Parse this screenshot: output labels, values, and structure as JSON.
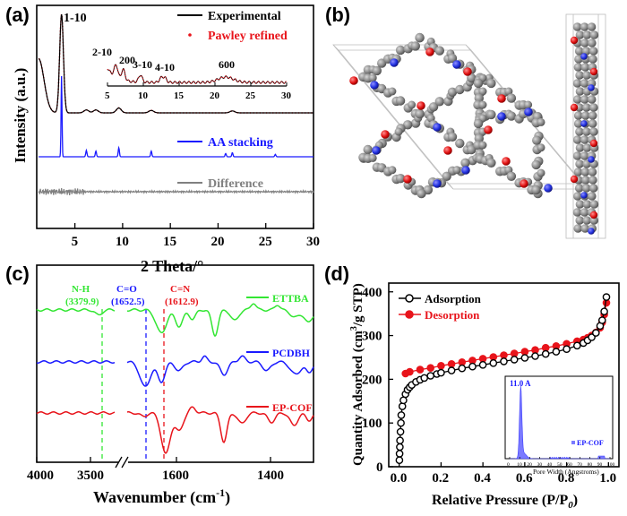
{
  "colors": {
    "black": "#000000",
    "red": "#e8141b",
    "blue": "#1a1aff",
    "gray": "#808080",
    "green": "#33e633",
    "atom_gray": "#8a8a8a",
    "atom_red": "#e01010",
    "atom_blue": "#2030e0",
    "inset_fill": "#7a7aff"
  },
  "panels": {
    "a": "(a)",
    "b": "(b)",
    "c": "(c)",
    "d": "(d)"
  },
  "chart_data": [
    {
      "id": "a",
      "type": "line",
      "xlabel": "2 Theta/°",
      "ylabel": "Intensity (a.u.)",
      "xlim": [
        1,
        30
      ],
      "xticks": [
        5,
        10,
        15,
        20,
        25,
        30
      ],
      "series": [
        {
          "name": "Experimental",
          "color": "#000000",
          "style": "line"
        },
        {
          "name": "Pawley refined",
          "color": "#e8141b",
          "style": "dots"
        },
        {
          "name": "AA stacking",
          "color": "#1a1aff",
          "style": "line"
        },
        {
          "name": "Difference",
          "color": "#808080",
          "style": "line"
        }
      ],
      "peak_labels": [
        "1-10"
      ],
      "peaks_main": [
        {
          "x": 3.6,
          "h": 1.0
        },
        {
          "x": 6.2,
          "h": 0.03
        },
        {
          "x": 7.2,
          "h": 0.03
        },
        {
          "x": 9.6,
          "h": 0.05
        },
        {
          "x": 13.0,
          "h": 0.025
        },
        {
          "x": 21.5,
          "h": 0.02
        }
      ],
      "peaks_aa": [
        {
          "x": 3.6,
          "h": 1.0
        },
        {
          "x": 6.2,
          "h": 0.08
        },
        {
          "x": 7.2,
          "h": 0.07
        },
        {
          "x": 9.6,
          "h": 0.11
        },
        {
          "x": 13.0,
          "h": 0.07
        },
        {
          "x": 20.8,
          "h": 0.04
        },
        {
          "x": 21.5,
          "h": 0.05
        },
        {
          "x": 26.0,
          "h": 0.03
        }
      ],
      "inset": {
        "xlim": [
          5,
          30
        ],
        "xticks": [
          5,
          10,
          15,
          20,
          25,
          30
        ],
        "peak_labels": [
          {
            "text": "2-10",
            "x": 6.0
          },
          {
            "text": "200",
            "x": 7.1
          },
          {
            "text": "3-10",
            "x": 9.6
          },
          {
            "text": "4-10",
            "x": 13.0
          },
          {
            "text": "600",
            "x": 21.5
          }
        ]
      }
    },
    {
      "id": "c",
      "type": "line",
      "xlabel": "Wavenumber (cm",
      "xlabel_sup": "-1",
      "xlabel_end": ")",
      "xticks": [
        "4000",
        "3500",
        "1600",
        "1400"
      ],
      "series": [
        {
          "name": "ETTBA",
          "color": "#33e633"
        },
        {
          "name": "PCDBH",
          "color": "#1a1aff"
        },
        {
          "name": "EP-COF",
          "color": "#e8141b"
        }
      ],
      "markers": [
        {
          "label": "N-H",
          "value": "(3379.9)",
          "color": "#33e633"
        },
        {
          "label": "C=O",
          "value": "(1652.5)",
          "color": "#1a1aff"
        },
        {
          "label": "C=N",
          "value": "(1612.9)",
          "color": "#e8141b"
        }
      ]
    },
    {
      "id": "d",
      "type": "line",
      "xlabel": "Relative Pressure (P/P",
      "xlabel_sub": "0",
      "xlabel_end": ")",
      "ylabel": "Quantity Adsorbed (cm",
      "ylabel_sup": "3",
      "ylabel_end": "/g STP)",
      "xlim": [
        -0.05,
        1.05
      ],
      "ylim": [
        0,
        420
      ],
      "xticks": [
        "0.0",
        "0.2",
        "0.4",
        "0.6",
        "0.8",
        "1.0"
      ],
      "yticks": [
        "0",
        "100",
        "200",
        "300",
        "400"
      ],
      "series": [
        {
          "name": "Adsorption",
          "color": "#000000",
          "x": [
            0.001,
            0.002,
            0.003,
            0.004,
            0.006,
            0.008,
            0.01,
            0.015,
            0.02,
            0.03,
            0.04,
            0.05,
            0.06,
            0.08,
            0.1,
            0.12,
            0.15,
            0.18,
            0.2,
            0.25,
            0.3,
            0.35,
            0.4,
            0.45,
            0.5,
            0.55,
            0.6,
            0.65,
            0.7,
            0.75,
            0.8,
            0.85,
            0.88,
            0.9,
            0.92,
            0.94,
            0.96,
            0.97,
            0.98,
            0.99
          ],
          "y": [
            15,
            30,
            45,
            60,
            80,
            100,
            118,
            138,
            152,
            166,
            176,
            182,
            187,
            194,
            199,
            203,
            208,
            212,
            215,
            220,
            225,
            229,
            233,
            237,
            241,
            245,
            249,
            253,
            258,
            263,
            269,
            277,
            283,
            289,
            296,
            306,
            322,
            335,
            355,
            388
          ]
        },
        {
          "name": "Desorption",
          "color": "#e8141b",
          "x": [
            0.99,
            0.98,
            0.97,
            0.96,
            0.94,
            0.92,
            0.9,
            0.88,
            0.85,
            0.8,
            0.75,
            0.7,
            0.65,
            0.6,
            0.55,
            0.5,
            0.45,
            0.4,
            0.35,
            0.3,
            0.25,
            0.2,
            0.15,
            0.1,
            0.05,
            0.03
          ],
          "y": [
            375,
            348,
            330,
            318,
            307,
            300,
            295,
            291,
            287,
            281,
            276,
            272,
            267,
            263,
            259,
            255,
            251,
            247,
            243,
            239,
            235,
            231,
            226,
            222,
            217,
            213
          ]
        }
      ],
      "inset": {
        "xlabel": "Pore Width (Angstroms)",
        "peak_label": "11.0 A",
        "legend": "EP-COF",
        "xticks": [
          "0",
          "10",
          "20",
          "30",
          "40",
          "50",
          "60",
          "70",
          "80",
          "90",
          "100"
        ]
      }
    }
  ]
}
